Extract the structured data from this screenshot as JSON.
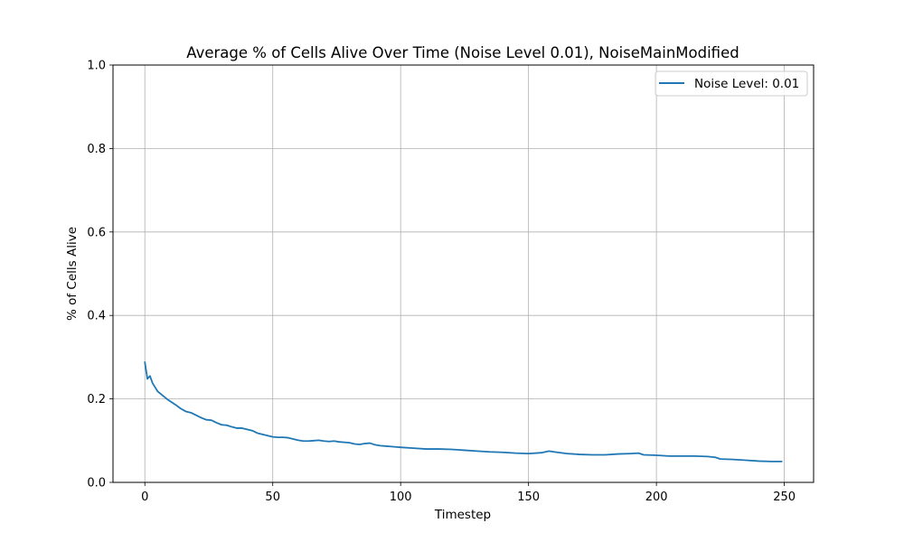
{
  "chart_data": {
    "type": "line",
    "title": "Average % of Cells Alive Over Time (Noise Level 0.01), NoiseMainModified",
    "xlabel": "Timestep",
    "ylabel": "% of Cells Alive",
    "xlim": [
      -12.45,
      261.45
    ],
    "ylim": [
      0,
      1.0
    ],
    "x_ticks": [
      0,
      50,
      100,
      150,
      200,
      250
    ],
    "y_ticks": [
      0.0,
      0.2,
      0.4,
      0.6,
      0.8,
      1.0
    ],
    "x_tick_labels": [
      "0",
      "50",
      "100",
      "150",
      "200",
      "250"
    ],
    "y_tick_labels": [
      "0.0",
      "0.2",
      "0.4",
      "0.6",
      "0.8",
      "1.0"
    ],
    "grid": true,
    "legend_position": "top-right",
    "line_color": "#1f77b4",
    "series": [
      {
        "name": "Noise Level: 0.01",
        "x": [
          0,
          1,
          2,
          3,
          4,
          5,
          6,
          7,
          8,
          9,
          10,
          12,
          14,
          16,
          18,
          20,
          22,
          24,
          26,
          28,
          30,
          32,
          34,
          36,
          38,
          40,
          42,
          44,
          46,
          48,
          50,
          52,
          54,
          56,
          58,
          60,
          62,
          64,
          66,
          68,
          70,
          72,
          74,
          76,
          78,
          80,
          82,
          84,
          86,
          88,
          90,
          92,
          94,
          96,
          98,
          100,
          105,
          110,
          115,
          120,
          125,
          130,
          135,
          140,
          145,
          150,
          155,
          158,
          160,
          165,
          170,
          175,
          180,
          185,
          190,
          193,
          195,
          200,
          205,
          210,
          215,
          220,
          223,
          225,
          230,
          235,
          240,
          245,
          249
        ],
        "y": [
          0.288,
          0.248,
          0.255,
          0.238,
          0.228,
          0.218,
          0.213,
          0.208,
          0.203,
          0.198,
          0.194,
          0.186,
          0.177,
          0.17,
          0.167,
          0.161,
          0.155,
          0.15,
          0.149,
          0.143,
          0.138,
          0.137,
          0.133,
          0.13,
          0.13,
          0.127,
          0.124,
          0.118,
          0.115,
          0.112,
          0.109,
          0.108,
          0.108,
          0.107,
          0.104,
          0.101,
          0.099,
          0.099,
          0.1,
          0.101,
          0.099,
          0.098,
          0.099,
          0.097,
          0.096,
          0.095,
          0.092,
          0.091,
          0.093,
          0.094,
          0.09,
          0.088,
          0.087,
          0.086,
          0.085,
          0.084,
          0.082,
          0.08,
          0.08,
          0.079,
          0.077,
          0.075,
          0.073,
          0.072,
          0.07,
          0.069,
          0.071,
          0.075,
          0.073,
          0.069,
          0.067,
          0.066,
          0.066,
          0.068,
          0.069,
          0.07,
          0.066,
          0.065,
          0.063,
          0.063,
          0.063,
          0.062,
          0.06,
          0.056,
          0.055,
          0.053,
          0.051,
          0.05,
          0.05
        ]
      }
    ]
  }
}
